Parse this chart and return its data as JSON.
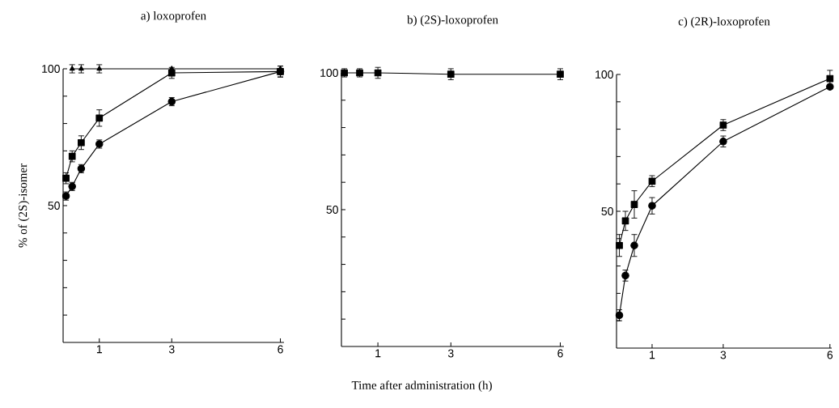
{
  "chart_data": [
    {
      "type": "line",
      "title": "a) loxoprofen",
      "ylabel": "% of (2S)-isomer",
      "xlim": [
        0,
        6.1
      ],
      "ylim": [
        0,
        100
      ],
      "xticks": [
        1,
        3,
        6
      ],
      "yticks": [
        {
          "value": 10,
          "label": null
        },
        {
          "value": 20,
          "label": null
        },
        {
          "value": 30,
          "label": null
        },
        {
          "value": 40,
          "label": null
        },
        50,
        {
          "value": 60,
          "label": null
        },
        {
          "value": 70,
          "label": null
        },
        {
          "value": 80,
          "label": null
        },
        {
          "value": 90,
          "label": null
        },
        100
      ],
      "series": [
        {
          "color": "#000000",
          "marker": "triangle",
          "x": [
            0.25,
            0.5,
            1,
            3,
            6
          ],
          "values": [
            100,
            100,
            100,
            100,
            100
          ],
          "errors": [
            1.5,
            1.5,
            1.5,
            null,
            null
          ]
        },
        {
          "color": "#000000",
          "marker": "square",
          "x": [
            0.08,
            0.25,
            0.5,
            1,
            3,
            6
          ],
          "values": [
            60,
            68,
            73,
            82,
            98.5,
            99
          ],
          "errors": [
            2,
            2,
            2.5,
            3,
            2,
            2
          ]
        },
        {
          "color": "#000000",
          "marker": "circle",
          "x": [
            0.08,
            0.25,
            0.5,
            1,
            3,
            6
          ],
          "values": [
            53.5,
            57,
            63.5,
            72.5,
            88,
            99
          ],
          "errors": [
            1.5,
            1.5,
            1.5,
            1.5,
            1.5,
            2
          ]
        }
      ]
    },
    {
      "type": "line",
      "title": "b) (2S)-loxoprofen",
      "xlabel": "Time after administration (h)",
      "xlim": [
        0,
        6.1
      ],
      "ylim": [
        0,
        100
      ],
      "xticks": [
        1,
        3,
        6
      ],
      "yticks": [
        {
          "value": 10,
          "label": null
        },
        {
          "value": 20,
          "label": null
        },
        {
          "value": 30,
          "label": null
        },
        {
          "value": 40,
          "label": null
        },
        50,
        {
          "value": 60,
          "label": null
        },
        {
          "value": 70,
          "label": null
        },
        {
          "value": 80,
          "label": null
        },
        {
          "value": 90,
          "label": null
        },
        100
      ],
      "series": [
        {
          "color": "#000000",
          "marker": "square",
          "x": [
            0.08,
            0.5,
            1,
            3,
            6
          ],
          "values": [
            100,
            100,
            100,
            99.5,
            99.5
          ],
          "errors": [
            1.5,
            1.5,
            2,
            2,
            2
          ]
        }
      ]
    },
    {
      "type": "line",
      "title": "c) (2R)-loxoprofen",
      "xlim": [
        0,
        6.05
      ],
      "ylim": [
        0,
        100
      ],
      "xticks": [
        1,
        3,
        6
      ],
      "yticks": [
        {
          "value": 10,
          "label": null
        },
        {
          "value": 20,
          "label": null
        },
        {
          "value": 30,
          "label": null
        },
        {
          "value": 40,
          "label": null
        },
        50,
        {
          "value": 60,
          "label": null
        },
        {
          "value": 70,
          "label": null
        },
        {
          "value": 80,
          "label": null
        },
        {
          "value": 90,
          "label": null
        },
        100
      ],
      "series": [
        {
          "color": "#000000",
          "marker": "square",
          "x": [
            0.08,
            0.25,
            0.5,
            1,
            3,
            6
          ],
          "values": [
            37.5,
            46.5,
            52.5,
            61,
            81.5,
            98.5
          ],
          "errors": [
            4,
            3.5,
            5,
            2,
            2,
            3
          ]
        },
        {
          "color": "#000000",
          "marker": "circle",
          "x": [
            0.08,
            0.25,
            0.5,
            1,
            3,
            6
          ],
          "values": [
            12,
            26.5,
            37.5,
            52,
            75.5,
            95.5
          ],
          "errors": [
            2,
            2,
            4,
            3,
            2,
            null
          ]
        }
      ]
    }
  ]
}
